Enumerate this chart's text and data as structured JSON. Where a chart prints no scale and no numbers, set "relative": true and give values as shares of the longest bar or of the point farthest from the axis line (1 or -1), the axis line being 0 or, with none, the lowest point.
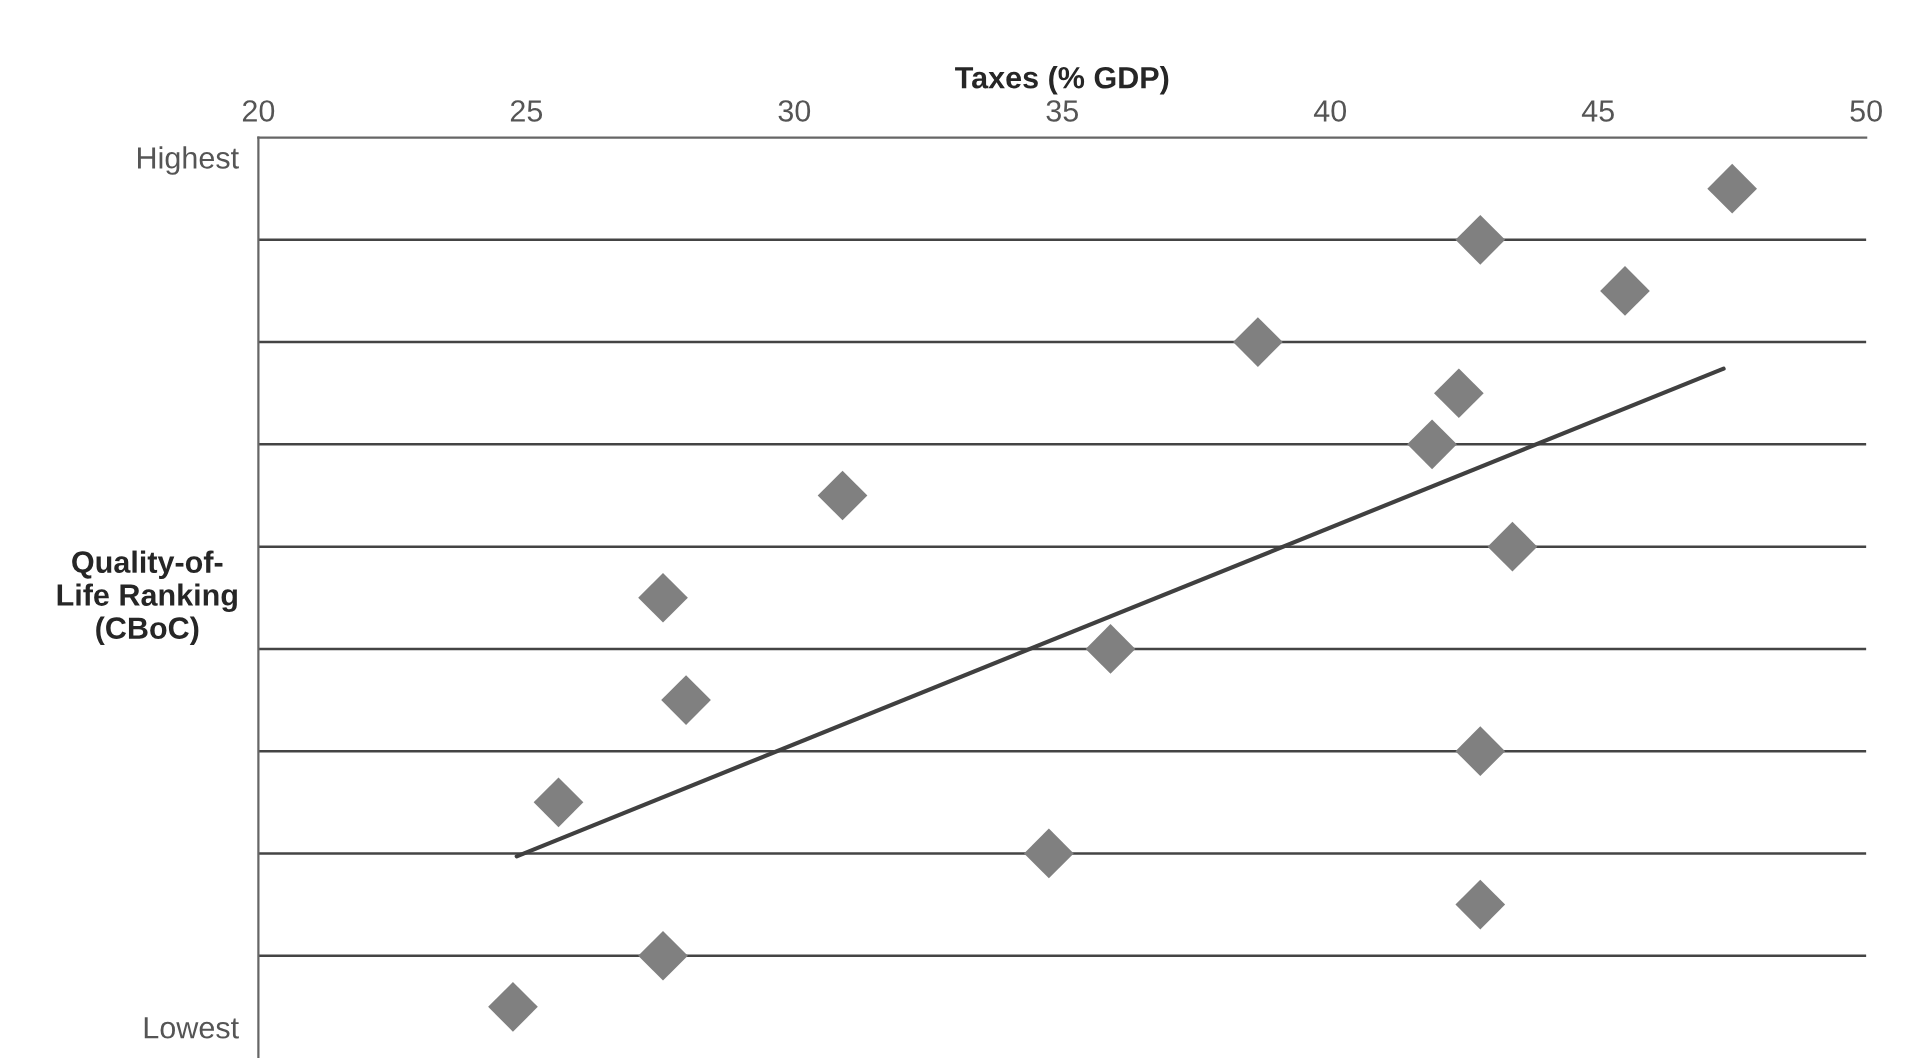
{
  "chart_data": {
    "type": "scatter",
    "xlabel": "Taxes (% GDP)",
    "ylabel": "Quality-of-\nLife Ranking\n(CBoC)",
    "xlim": [
      20,
      50
    ],
    "xticks": [
      20,
      25,
      30,
      35,
      40,
      45,
      50
    ],
    "relative": true,
    "annotations": [
      "Highest",
      "Lowest"
    ],
    "ref_lines": [
      {
        "axis": "y",
        "value": 0.9375,
        "label": null,
        "color": "#444444"
      },
      {
        "axis": "y",
        "value": 0.8125,
        "label": null,
        "color": "#444444"
      },
      {
        "axis": "y",
        "value": 0.6875,
        "label": null,
        "color": "#444444"
      },
      {
        "axis": "y",
        "value": 0.5625,
        "label": null,
        "color": "#444444"
      },
      {
        "axis": "y",
        "value": 0.4375,
        "label": null,
        "color": "#444444"
      },
      {
        "axis": "y",
        "value": 0.3125,
        "label": null,
        "color": "#444444"
      },
      {
        "axis": "y",
        "value": 0.1875,
        "label": null,
        "color": "#444444"
      },
      {
        "axis": "y",
        "value": 0.0625,
        "label": null,
        "color": "#444444"
      }
    ],
    "series": [
      {
        "color": "#808080",
        "marker": "diamond",
        "x": [
          47.5,
          42.8,
          45.5,
          38.65,
          42.4,
          41.9,
          30.9,
          43.4,
          27.55,
          35.9,
          27.98,
          42.8,
          25.6,
          34.75,
          42.8,
          27.55,
          24.75
        ],
        "values": [
          1,
          0.9375,
          0.875,
          0.8125,
          0.75,
          0.6875,
          0.625,
          0.5625,
          0.5,
          0.4375,
          0.375,
          0.3125,
          0.25,
          0.1875,
          0.125,
          0.0625,
          0
        ]
      },
      {
        "type": "line",
        "color": "#404040",
        "x": [
          24.82,
          47.34
        ],
        "values": [
          0.184,
          0.78
        ]
      }
    ]
  }
}
